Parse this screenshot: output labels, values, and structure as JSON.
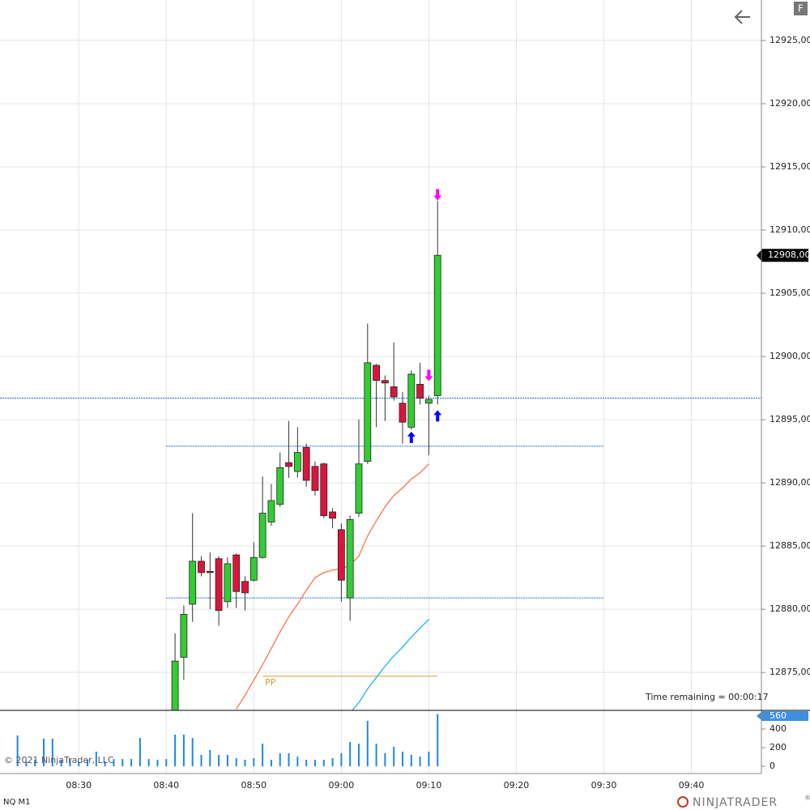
{
  "chart_data": {
    "type": "candlestick",
    "instrument": "NQ M1",
    "copyright": "© 2021 NinjaTrader, LLC",
    "time_remaining": "Time remaining = 00:00:17",
    "logo": "NINJATRADER",
    "logo_mark": "®",
    "button": "F",
    "up_color": "#32cd32",
    "down_color": "#dc143c",
    "grid": true,
    "xlim": [
      "08:21",
      "09:48"
    ],
    "xticks": [
      "08:30",
      "08:40",
      "08:50",
      "09:00",
      "09:10",
      "09:20",
      "09:30",
      "09:40"
    ],
    "ylim": [
      12872,
      12928.2
    ],
    "yticks": [
      {
        "value": 12875,
        "label": "12875,00"
      },
      {
        "value": 12880,
        "label": "12880,00"
      },
      {
        "value": 12885,
        "label": "12885,00"
      },
      {
        "value": 12890,
        "label": "12890,00"
      },
      {
        "value": 12895,
        "label": "12895,00"
      },
      {
        "value": 12900,
        "label": "12900,00"
      },
      {
        "value": 12905,
        "label": "12905,00"
      },
      {
        "value": 12910,
        "label": "12910,00"
      },
      {
        "value": 12915,
        "label": "12915,00"
      },
      {
        "value": 12920,
        "label": "12920,00"
      },
      {
        "value": 12925,
        "label": "12925,00"
      }
    ],
    "last_price": {
      "value": 12908,
      "label": "12908,00"
    },
    "x": [
      "08:41",
      "08:42",
      "08:43",
      "08:44",
      "08:45",
      "08:46",
      "08:47",
      "08:48",
      "08:49",
      "08:50",
      "08:51",
      "08:52",
      "08:53",
      "08:54",
      "08:55",
      "08:56",
      "08:57",
      "08:58",
      "08:59",
      "09:00",
      "09:01",
      "09:02",
      "09:03",
      "09:04",
      "09:05",
      "09:06",
      "09:07",
      "09:08",
      "09:09",
      "09:10",
      "09:11"
    ],
    "open": [
      12872,
      12876.2,
      12880.4,
      12883.8,
      12883,
      12884,
      12880.6,
      12884.3,
      12882.2,
      12882.3,
      12884.1,
      12886.9,
      12888.3,
      12891.6,
      12890.9,
      12892.8,
      12891.3,
      12891.5,
      12887.7,
      12886.3,
      12880.9,
      12887.6,
      12891.7,
      12899.3,
      12898.1,
      12897.6,
      12896.3,
      12894.4,
      12897.8,
      12896.3,
      12896.9
    ],
    "high": [
      12878.1,
      12880.3,
      12887.6,
      12884.2,
      12884.5,
      12884.2,
      12884.1,
      12884.4,
      12882.6,
      12885.3,
      12890.5,
      12889.9,
      12892.4,
      12894.9,
      12894.4,
      12893.1,
      12891.7,
      12891.6,
      12888,
      12886.8,
      12887.4,
      12895,
      12902.6,
      12899.4,
      12898.5,
      12901.1,
      12897.2,
      12898.9,
      12899.5,
      12896.9,
      12912.3
    ],
    "low": [
      12871,
      12874.4,
      12879,
      12882.6,
      12880,
      12878.7,
      12880.1,
      12880.1,
      12879.9,
      12882.2,
      12884,
      12886.6,
      12888.1,
      12890.4,
      12890.4,
      12889.7,
      12889,
      12887.2,
      12886.4,
      12880.6,
      12879.1,
      12887.3,
      12891.5,
      12894.4,
      12894.9,
      12896.5,
      12893.1,
      12894.2,
      12896.2,
      12892.2,
      12896.2
    ],
    "close": [
      12875.9,
      12879.6,
      12883.8,
      12882.9,
      12882.9,
      12879.9,
      12883.6,
      12881.4,
      12881.3,
      12884.1,
      12887.6,
      12888.6,
      12891.2,
      12891.3,
      12892.4,
      12890.2,
      12889.4,
      12887.4,
      12887.2,
      12882.3,
      12887.1,
      12891.5,
      12899.5,
      12898.1,
      12897.9,
      12896.8,
      12894.8,
      12898.6,
      12896.7,
      12896.6,
      12908
    ],
    "series": [
      {
        "color": "#ff7350",
        "x": [
          "08:48",
          "08:49",
          "08:50",
          "08:51",
          "08:52",
          "08:53",
          "08:54",
          "08:55",
          "08:56",
          "08:57",
          "08:58",
          "08:59",
          "09:00",
          "09:01",
          "09:02",
          "09:03",
          "09:04",
          "09:05",
          "09:06",
          "09:07",
          "09:08",
          "09:09",
          "09:10"
        ],
        "values": [
          12872.1,
          12873.2,
          12874.4,
          12875.6,
          12876.9,
          12878.2,
          12879.4,
          12880.4,
          12881.5,
          12882.5,
          12882.9,
          12883.1,
          12883.2,
          12883.5,
          12884.2,
          12885.8,
          12887,
          12888.1,
          12889,
          12889.6,
          12890.3,
          12890.8,
          12891.5
        ]
      },
      {
        "color": "#1eb4f0",
        "x": [
          "09:01",
          "09:02",
          "09:03",
          "09:04",
          "09:05",
          "09:06",
          "09:07",
          "09:08",
          "09:09",
          "09:10"
        ],
        "values": [
          12871.8,
          12872.6,
          12873.7,
          12874.6,
          12875.5,
          12876.3,
          12877,
          12877.8,
          12878.5,
          12879.2
        ]
      }
    ],
    "lines": [
      {
        "value": 12896.7,
        "from": "08:21",
        "to": "09:48",
        "color": "#1e6fd0"
      },
      {
        "value": 12892.9,
        "from": "08:40",
        "to": "09:30",
        "color": "#1e6fd0"
      },
      {
        "value": 12880.9,
        "from": "08:40",
        "to": "09:30",
        "color": "#1e6fd0"
      },
      {
        "value": 12874.7,
        "from": "08:51",
        "to": "09:11",
        "color": "#d4a030",
        "label": "PP"
      }
    ],
    "signals": [
      {
        "x": "09:08",
        "price": 12893.6,
        "dir": "up",
        "color": "#0000ff"
      },
      {
        "x": "09:11",
        "price": 12895.3,
        "dir": "up",
        "color": "#0000ff"
      },
      {
        "x": "09:10",
        "price": 12898.5,
        "dir": "down",
        "color": "#ff00ff"
      },
      {
        "x": "09:11",
        "price": 12912.8,
        "dir": "down",
        "color": "#ff00ff"
      }
    ],
    "volume": {
      "color": "#1e88e5",
      "ylim": [
        -78,
        591
      ],
      "yticks": [
        0,
        200,
        400
      ],
      "x": [
        "08:23",
        "08:24",
        "08:25",
        "08:26",
        "08:27",
        "08:28",
        "08:29",
        "08:30",
        "08:31",
        "08:32",
        "08:33",
        "08:34",
        "08:35",
        "08:36",
        "08:37",
        "08:38",
        "08:39",
        "08:40",
        "08:41",
        "08:42",
        "08:43",
        "08:44",
        "08:45",
        "08:46",
        "08:47",
        "08:48",
        "08:49",
        "08:50",
        "08:51",
        "08:52",
        "08:53",
        "08:54",
        "08:55",
        "08:56",
        "08:57",
        "08:58",
        "08:59",
        "09:00",
        "09:01",
        "09:02",
        "09:03",
        "09:04",
        "09:05",
        "09:06",
        "09:07",
        "09:08",
        "09:09",
        "09:10",
        "09:11"
      ],
      "values": [
        330,
        52,
        70,
        296,
        296,
        70,
        78,
        52,
        70,
        157,
        52,
        78,
        78,
        78,
        304,
        78,
        70,
        78,
        339,
        339,
        304,
        122,
        174,
        122,
        122,
        87,
        70,
        87,
        243,
        70,
        139,
        139,
        104,
        70,
        70,
        70,
        87,
        139,
        261,
        243,
        487,
        243,
        139,
        209,
        157,
        122,
        104,
        157,
        560
      ]
    }
  }
}
